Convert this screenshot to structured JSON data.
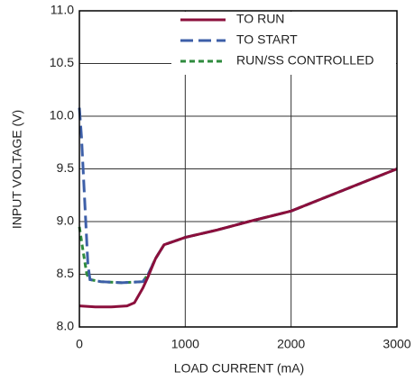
{
  "chart_data": {
    "type": "line",
    "xlabel": "LOAD CURRENT (mA)",
    "ylabel": "INPUT VOLTAGE (V)",
    "xlim": [
      0,
      3000
    ],
    "xticks": [
      0,
      1000,
      2000,
      3000
    ],
    "ylim": [
      8,
      11
    ],
    "yticks": [
      {
        "value": 8,
        "label": "8.0"
      },
      8.5,
      {
        "value": 9,
        "label": "9.0"
      },
      9.5,
      {
        "value": 10,
        "label": "10.0"
      },
      10.5,
      {
        "value": 11,
        "label": "11.0"
      }
    ],
    "grid": true,
    "legend": "top",
    "series": [
      {
        "name": "TO RUN",
        "color": "#8b0f3c",
        "dash": "solid",
        "x": [
          0,
          150,
          300,
          450,
          520,
          600,
          650,
          720,
          800,
          1000,
          1300,
          1600,
          2000,
          2500,
          3000
        ],
        "values": [
          8.2,
          8.19,
          8.19,
          8.2,
          8.23,
          8.37,
          8.48,
          8.65,
          8.78,
          8.85,
          8.92,
          9.0,
          9.1,
          9.3,
          9.5
        ]
      },
      {
        "name": "TO START",
        "color": "#3d5fa8",
        "dash": "long",
        "x": [
          0,
          20,
          50,
          80,
          100,
          200,
          400,
          600,
          650,
          720,
          800,
          1000,
          1300,
          1600,
          2000,
          2500,
          3000
        ],
        "values": [
          10.08,
          9.8,
          9.2,
          8.6,
          8.45,
          8.43,
          8.42,
          8.43,
          8.5,
          8.65,
          8.78,
          8.85,
          8.92,
          9.0,
          9.1,
          9.3,
          9.5
        ]
      },
      {
        "name": "RUN/SS CONTROLLED",
        "color": "#2e8b3e",
        "dash": "short",
        "x": [
          0,
          30,
          70,
          100,
          200,
          400,
          600,
          650,
          720,
          800,
          1000,
          1300,
          1600,
          2000,
          2500,
          3000
        ],
        "values": [
          8.95,
          8.75,
          8.5,
          8.45,
          8.43,
          8.42,
          8.43,
          8.5,
          8.65,
          8.78,
          8.85,
          8.92,
          9.0,
          9.1,
          9.3,
          9.5
        ]
      }
    ]
  }
}
